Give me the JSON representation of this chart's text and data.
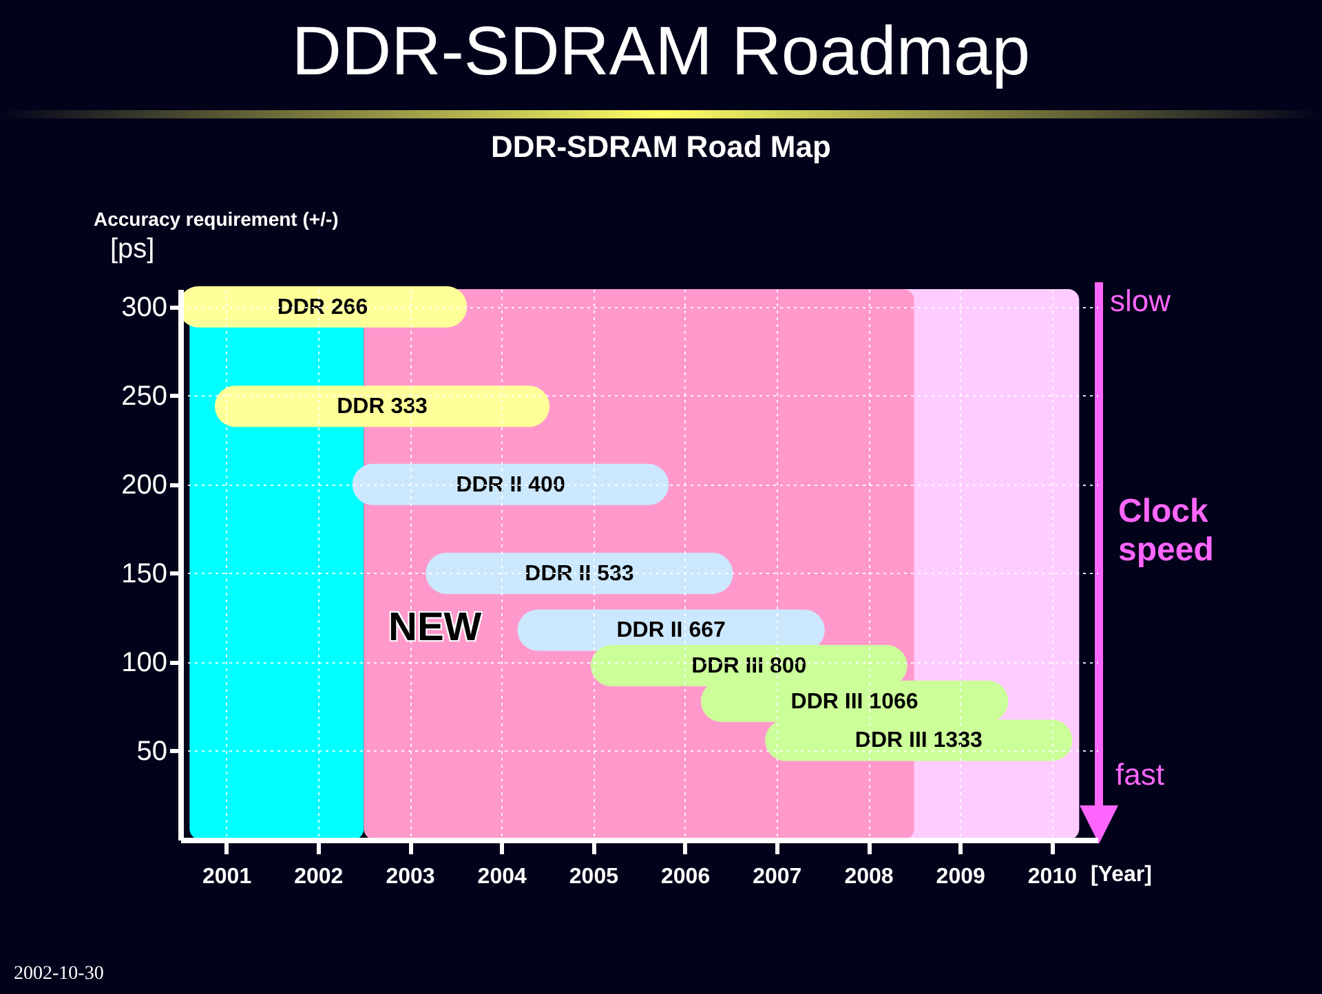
{
  "chart_data": {
    "type": "line",
    "title": "DDR-SDRAM Roadmap",
    "subtitle": "DDR-SDRAM Road Map",
    "xlabel": "[Year]",
    "ylabel": "Accuracy requirement (+/-) [ps]",
    "xlim": [
      2000.5,
      2010.5
    ],
    "xticks": [
      2001,
      2002,
      2003,
      2004,
      2005,
      2006,
      2007,
      2008,
      2009,
      2010
    ],
    "ylim": [
      0,
      310
    ],
    "yticks": [
      50,
      100,
      150,
      200,
      250,
      300
    ],
    "grid": true,
    "bands": [
      {
        "axis": "x",
        "from": 2000.6,
        "to": 2002.5,
        "color": "#00ffff"
      },
      {
        "axis": "x",
        "from": 2004.0,
        "to": 2010.3,
        "color": "#ffccff"
      },
      {
        "axis": "x",
        "from": 2002.5,
        "to": 2008.5,
        "color": "#ff99cc"
      }
    ],
    "series": [
      {
        "name": "DDR 266",
        "color": "#ffff99",
        "x": [
          2000.7,
          2003.4
        ],
        "values": [
          300,
          300
        ]
      },
      {
        "name": "DDR 333",
        "color": "#ffff99",
        "x": [
          2001.1,
          2004.3
        ],
        "values": [
          244,
          244
        ]
      },
      {
        "name": "DDR II 400",
        "color": "#cce8ff",
        "x": [
          2002.6,
          2005.6
        ],
        "values": [
          200,
          200
        ]
      },
      {
        "name": "DDR II 533",
        "color": "#cce8ff",
        "x": [
          2003.4,
          2006.3
        ],
        "values": [
          150,
          150
        ]
      },
      {
        "name": "DDR II 667",
        "color": "#cce8ff",
        "x": [
          2004.4,
          2007.3
        ],
        "values": [
          118,
          118
        ]
      },
      {
        "name": "DDR III 800",
        "color": "#ccff99",
        "x": [
          2005.2,
          2008.2
        ],
        "values": [
          98,
          98
        ]
      },
      {
        "name": "DDR III 1066",
        "color": "#ccff99",
        "x": [
          2006.4,
          2009.3
        ],
        "values": [
          78,
          78
        ]
      },
      {
        "name": "DDR III 1333",
        "color": "#ccff99",
        "x": [
          2007.1,
          2010.0
        ],
        "values": [
          56,
          56
        ]
      }
    ],
    "annotations": [
      "slow",
      "Clock speed",
      "fast",
      "2002-10-30",
      "NEW"
    ]
  }
}
